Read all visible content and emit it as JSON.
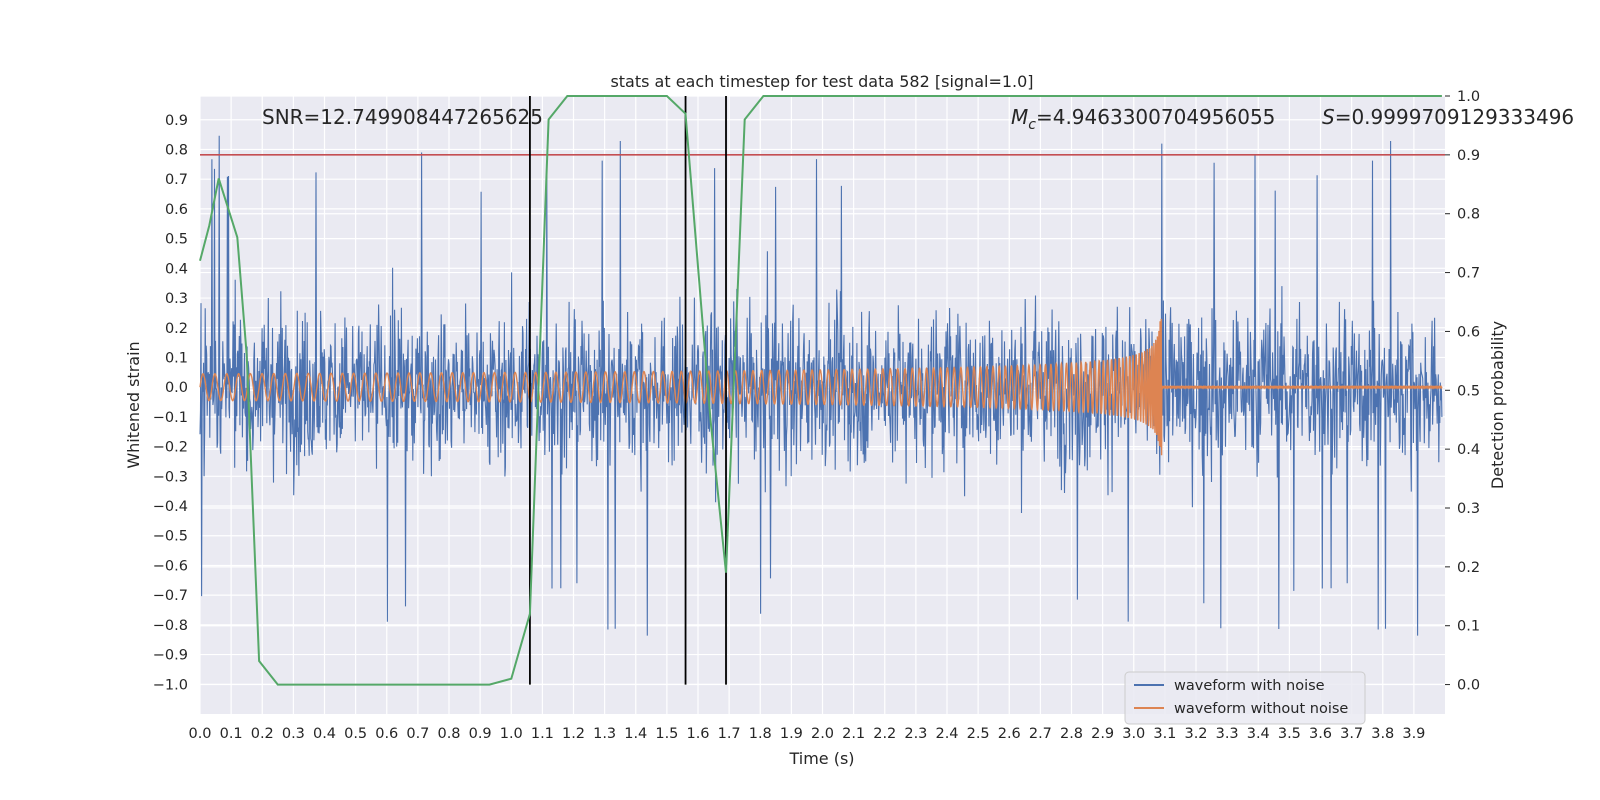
{
  "chart_data": {
    "type": "line",
    "title": "stats at each timestep for test data 582 [signal=1.0]",
    "xlabel": "Time (s)",
    "ylabel_left": "Whitened strain",
    "ylabel_right": "Detection probability",
    "xlim": [
      0.0,
      4.0
    ],
    "ylim_left": [
      -1.1,
      0.98
    ],
    "ylim_right": [
      -0.05,
      1.0
    ],
    "x_ticks": [
      "0.0",
      "0.1",
      "0.2",
      "0.3",
      "0.4",
      "0.5",
      "0.6",
      "0.7",
      "0.8",
      "0.9",
      "1.0",
      "1.1",
      "1.2",
      "1.3",
      "1.4",
      "1.5",
      "1.6",
      "1.7",
      "1.8",
      "1.9",
      "2.0",
      "2.1",
      "2.2",
      "2.3",
      "2.4",
      "2.5",
      "2.6",
      "2.7",
      "2.8",
      "2.9",
      "3.0",
      "3.1",
      "3.2",
      "3.3",
      "3.4",
      "3.5",
      "3.6",
      "3.7",
      "3.8",
      "3.9"
    ],
    "y_ticks_left": [
      "0.9",
      "0.8",
      "0.7",
      "0.6",
      "0.5",
      "0.4",
      "0.3",
      "0.2",
      "0.1",
      "0.0",
      "−0.1",
      "−0.2",
      "−0.3",
      "−0.4",
      "−0.5",
      "−0.6",
      "−0.7",
      "−0.8",
      "−0.9",
      "−1.0"
    ],
    "y_ticks_right": [
      "1.0",
      "0.9",
      "0.8",
      "0.7",
      "0.6",
      "0.5",
      "0.4",
      "0.3",
      "0.2",
      "0.1",
      "0.0"
    ],
    "annotations": {
      "snr": "SNR=12.749908447265625",
      "mc_symbol": "M",
      "mc_sub": "c",
      "mc_value": "=4.9463300704956055",
      "s_symbol": "S",
      "s_value": "=0.9999709129333496"
    },
    "threshold": {
      "axis": "right",
      "value": 0.9,
      "color": "#c44e52"
    },
    "vertical_lines": [
      1.06,
      1.56,
      1.69
    ],
    "series": [
      {
        "name": "waveform with noise",
        "axis": "left",
        "color": "#4c72b0",
        "envelope": {
          "typical": 0.45,
          "spike": 0.85
        }
      },
      {
        "name": "waveform without noise",
        "axis": "left",
        "color": "#dd8452",
        "chirp": {
          "start": 0.0,
          "merger": 3.09,
          "amp_start": 0.045,
          "amp_peak": 0.3
        }
      },
      {
        "axis": "right",
        "color": "#55a868",
        "x": [
          0.0,
          0.03,
          0.06,
          0.12,
          0.15,
          0.19,
          0.25,
          0.4,
          0.6,
          0.8,
          0.93,
          1.0,
          1.06,
          1.12,
          1.18,
          1.4,
          1.5,
          1.56,
          1.64,
          1.69,
          1.75,
          1.81,
          2.5,
          3.5,
          3.99
        ],
        "y": [
          0.72,
          0.78,
          0.86,
          0.76,
          0.56,
          0.04,
          0.0,
          0.0,
          0.0,
          0.0,
          0.0,
          0.01,
          0.12,
          0.96,
          1.0,
          1.0,
          1.0,
          0.97,
          0.45,
          0.19,
          0.96,
          1.0,
          1.0,
          1.0,
          1.0
        ]
      }
    ],
    "legend": {
      "placement": "lower-right",
      "entries": [
        "waveform with noise",
        "waveform without noise"
      ]
    },
    "grid": true
  }
}
